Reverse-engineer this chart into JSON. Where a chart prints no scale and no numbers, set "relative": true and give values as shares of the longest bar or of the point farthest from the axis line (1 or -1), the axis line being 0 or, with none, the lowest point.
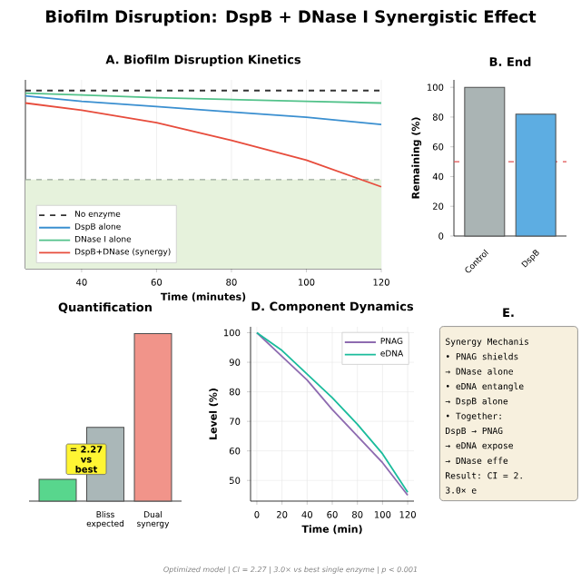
{
  "chart_data": [
    {
      "type": "line",
      "title": "Biofilm Disruption: DspB + DNase I Synergistic Effect",
      "subtitle": "A. Biofilm Disruption Kinetics",
      "xlabel": "Time (minutes)",
      "relative": true,
      "x": [
        25,
        40,
        60,
        80,
        100,
        120
      ],
      "xlim": [
        25,
        120
      ],
      "xticks": [
        40,
        60,
        80,
        100,
        120
      ],
      "grid": true,
      "legend": "bottom left",
      "series": [
        {
          "name": "No enzyme",
          "color": "#333333",
          "line_style": "dashed",
          "values": [
            1,
            1,
            1,
            1,
            1,
            1
          ]
        },
        {
          "name": "DspB alone",
          "color": "#3a8fd0",
          "values": [
            0.97,
            0.94,
            0.91,
            0.88,
            0.85,
            0.81
          ]
        },
        {
          "name": "DNase I alone",
          "color": "#52c28a",
          "values": [
            0.985,
            0.975,
            0.96,
            0.95,
            0.94,
            0.93
          ]
        },
        {
          "name": "DspB+DNase (synergy)",
          "color": "#e74c3c",
          "values": [
            0.93,
            0.89,
            0.82,
            0.72,
            0.61,
            0.46
          ]
        }
      ],
      "bands": [
        {
          "axis": "y",
          "from": 0,
          "to": 0.5,
          "color": "#e6f2dc"
        }
      ],
      "ref_lines": [
        {
          "axis": "y",
          "value": 0.5,
          "color": "#9aa89a",
          "line_style": "dashed"
        }
      ]
    },
    {
      "type": "bar",
      "title": "B. End",
      "ylabel": "Remaining (%)",
      "categories": [
        "Control",
        "DspB"
      ],
      "values": [
        100,
        82
      ],
      "colors": [
        "#aab4b4",
        "#5dade2"
      ],
      "ylim": [
        0,
        105
      ],
      "yticks": [
        0,
        20,
        40,
        60,
        80,
        100
      ],
      "ref_lines": [
        {
          "axis": "y",
          "value": 50,
          "color": "#e05050",
          "line_style": "dashed"
        }
      ]
    },
    {
      "type": "bar",
      "title": "Quantification",
      "relative": true,
      "categories": [
        null,
        "Bliss expected",
        "Dual synergy"
      ],
      "values": [
        0.13,
        0.44,
        1
      ],
      "colors": [
        "#58d68d",
        "#aab7b8",
        "#f1948a"
      ],
      "annotations": [
        "= 2.27 vs best"
      ]
    },
    {
      "type": "line",
      "title": "D. Component Dynamics",
      "xlabel": "Time (min)",
      "ylabel": "Level (%)",
      "x": [
        0,
        20,
        40,
        60,
        80,
        100,
        120
      ],
      "xlim": [
        -5,
        125
      ],
      "ylim": [
        43,
        102
      ],
      "xticks": [
        0,
        20,
        40,
        60,
        80,
        100,
        120
      ],
      "yticks": [
        50,
        60,
        70,
        80,
        90,
        100
      ],
      "grid": true,
      "legend": "top right",
      "series": [
        {
          "name": "PNAG",
          "color": "#8e6bb0",
          "values": [
            100,
            92,
            84,
            74,
            65,
            56,
            45
          ]
        },
        {
          "name": "eDNA",
          "color": "#1abc9c",
          "values": [
            100,
            94,
            86,
            78,
            69,
            59,
            46
          ]
        }
      ],
      "annotations": [
        "Optimized model | CI = 2.27 | 3.0× vs best single enzyme | p < 0.001"
      ]
    },
    {
      "type": "other",
      "title": "E.",
      "annotations": [
        "Synergy Mechanis",
        "• PNAG shields",
        "→ DNase alone",
        "• eDNA entangle",
        "→ DspB alone",
        "• Together:",
        "DspB → PNAG",
        "→ eDNA expose",
        "→ DNase effe",
        "Result: CI = 2.",
        "3.0× e"
      ]
    }
  ]
}
